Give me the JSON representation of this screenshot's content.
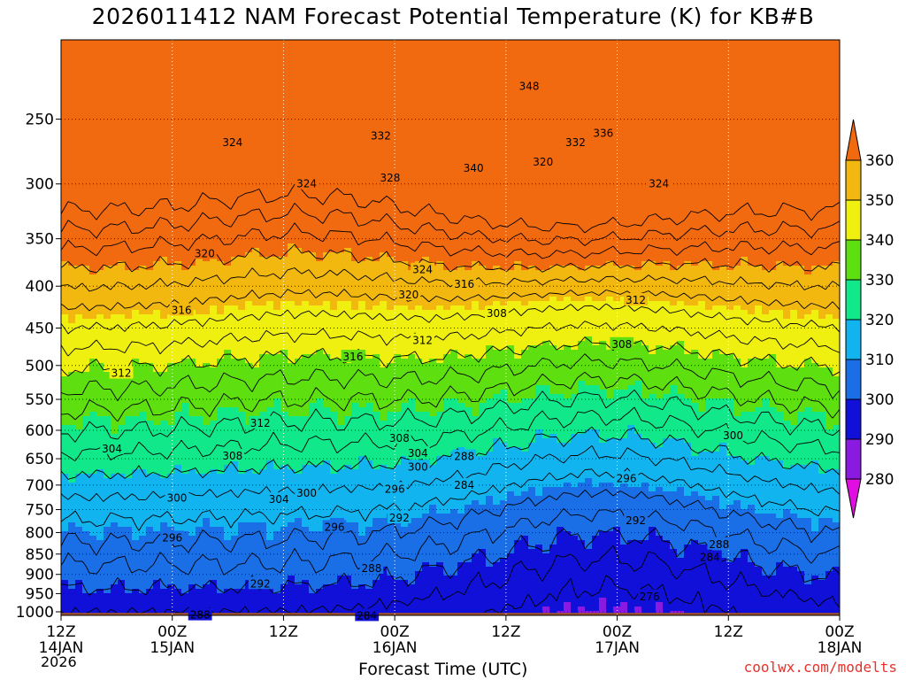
{
  "chart_data": {
    "type": "heatmap",
    "title": "2026011412 NAM Forecast Potential Temperature (K) for KB#B",
    "xlabel": "Forecast Time (UTC)",
    "ylabel": "",
    "y_scale": "log-pressure",
    "y_unit": "hPa",
    "x": {
      "ticks": [
        "12Z",
        "00Z",
        "12Z",
        "00Z",
        "12Z",
        "00Z",
        "12Z",
        "00Z"
      ],
      "tick_sublabels": [
        "14JAN",
        "15JAN",
        "",
        "16JAN",
        "",
        "17JAN",
        "",
        "18JAN"
      ],
      "year_label": "2026",
      "range_hours": [
        0,
        84
      ],
      "tick_hours": [
        0,
        12,
        24,
        36,
        48,
        60,
        72,
        84
      ]
    },
    "y": {
      "ticks": [
        250,
        300,
        350,
        400,
        450,
        500,
        550,
        600,
        650,
        700,
        750,
        800,
        850,
        900,
        950,
        1000
      ],
      "range": [
        200,
        1010
      ]
    },
    "colorbar": {
      "levels": [
        280,
        290,
        300,
        310,
        320,
        330,
        340,
        350,
        360
      ],
      "colors": [
        "#e00ee0",
        "#8a1ae0",
        "#1010d8",
        "#1a6ee6",
        "#12b4ef",
        "#10e88a",
        "#5ee010",
        "#f0f010",
        "#f2b810",
        "#f26a10"
      ],
      "extend": "both"
    },
    "contour_interval": 4,
    "contour_labels": [
      {
        "v": "324",
        "h": 18.5,
        "p": 267
      },
      {
        "v": "332",
        "h": 34.5,
        "p": 262
      },
      {
        "v": "348",
        "h": 50.5,
        "p": 228
      },
      {
        "v": "336",
        "h": 58.5,
        "p": 260
      },
      {
        "v": "332",
        "h": 55.5,
        "p": 267
      },
      {
        "v": "340",
        "h": 44.5,
        "p": 287
      },
      {
        "v": "324",
        "h": 26.5,
        "p": 300
      },
      {
        "v": "328",
        "h": 35.5,
        "p": 295
      },
      {
        "v": "320",
        "h": 52,
        "p": 282
      },
      {
        "v": "324",
        "h": 64.5,
        "p": 300
      },
      {
        "v": "320",
        "h": 15.5,
        "p": 365
      },
      {
        "v": "324",
        "h": 39,
        "p": 382
      },
      {
        "v": "316",
        "h": 43.5,
        "p": 398
      },
      {
        "v": "320",
        "h": 37.5,
        "p": 410
      },
      {
        "v": "312",
        "h": 62,
        "p": 416
      },
      {
        "v": "316",
        "h": 13,
        "p": 428
      },
      {
        "v": "308",
        "h": 47,
        "p": 432
      },
      {
        "v": "312",
        "h": 39,
        "p": 466
      },
      {
        "v": "316",
        "h": 31.5,
        "p": 488
      },
      {
        "v": "308",
        "h": 60.5,
        "p": 471
      },
      {
        "v": "312",
        "h": 6.5,
        "p": 511
      },
      {
        "v": "312",
        "h": 21.5,
        "p": 588
      },
      {
        "v": "308",
        "h": 36.5,
        "p": 614
      },
      {
        "v": "304",
        "h": 38.5,
        "p": 640
      },
      {
        "v": "300",
        "h": 38.5,
        "p": 665
      },
      {
        "v": "304",
        "h": 5.5,
        "p": 632
      },
      {
        "v": "308",
        "h": 18.5,
        "p": 645
      },
      {
        "v": "288",
        "h": 43.5,
        "p": 646
      },
      {
        "v": "300",
        "h": 72.5,
        "p": 609
      },
      {
        "v": "284",
        "h": 43.5,
        "p": 700
      },
      {
        "v": "296",
        "h": 36,
        "p": 708
      },
      {
        "v": "300",
        "h": 26.5,
        "p": 716
      },
      {
        "v": "296",
        "h": 61,
        "p": 687
      },
      {
        "v": "304",
        "h": 23.5,
        "p": 729
      },
      {
        "v": "300",
        "h": 12.5,
        "p": 726
      },
      {
        "v": "292",
        "h": 36.5,
        "p": 768
      },
      {
        "v": "292",
        "h": 62,
        "p": 774
      },
      {
        "v": "296",
        "h": 29.5,
        "p": 788
      },
      {
        "v": "296",
        "h": 12,
        "p": 812
      },
      {
        "v": "288",
        "h": 71,
        "p": 827
      },
      {
        "v": "284",
        "h": 70,
        "p": 858
      },
      {
        "v": "288",
        "h": 33.5,
        "p": 885
      },
      {
        "v": "292",
        "h": 21.5,
        "p": 924
      },
      {
        "v": "276",
        "h": 63.5,
        "p": 958
      },
      {
        "v": "288",
        "h": 15,
        "p": 1009
      },
      {
        "v": "284",
        "h": 33,
        "p": 1011
      }
    ]
  },
  "credit": "coolwx.com/modelts"
}
